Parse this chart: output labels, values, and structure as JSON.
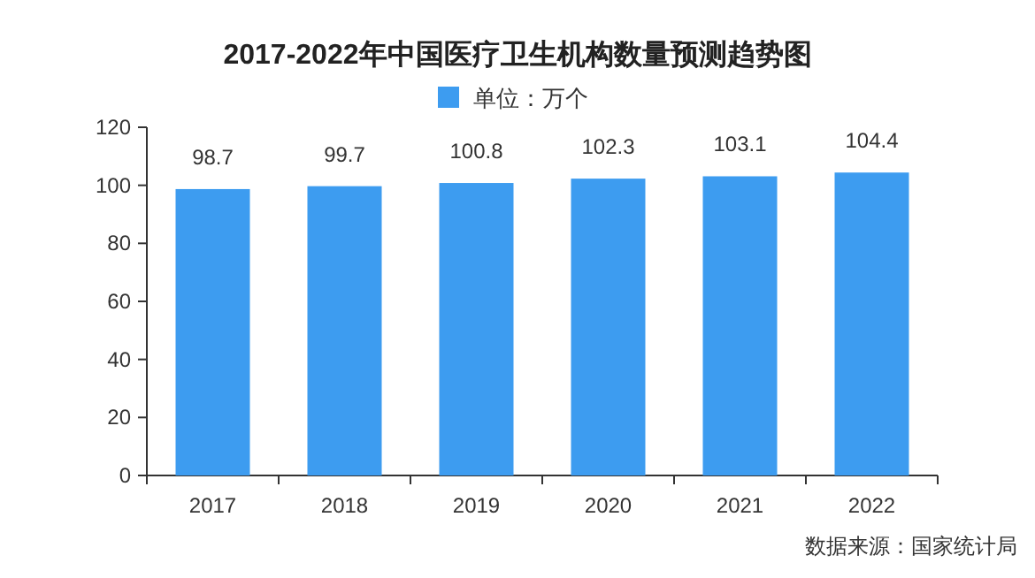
{
  "chart_data": {
    "type": "bar",
    "title": "2017-2022年中国医疗卫生机构数量预测趋势图",
    "categories": [
      "2017",
      "2018",
      "2019",
      "2020",
      "2021",
      "2022"
    ],
    "series": [
      {
        "name": "单位：万个",
        "color": "#3d9cf0",
        "values": [
          98.7,
          99.7,
          100.8,
          102.3,
          103.1,
          104.4
        ]
      }
    ],
    "ylim": [
      0,
      120
    ],
    "yticks": [
      0,
      20,
      40,
      60,
      80,
      100,
      120
    ],
    "data_labels": true,
    "legend": "top",
    "grid": false,
    "annotations": [
      "数据来源：国家统计局"
    ]
  }
}
